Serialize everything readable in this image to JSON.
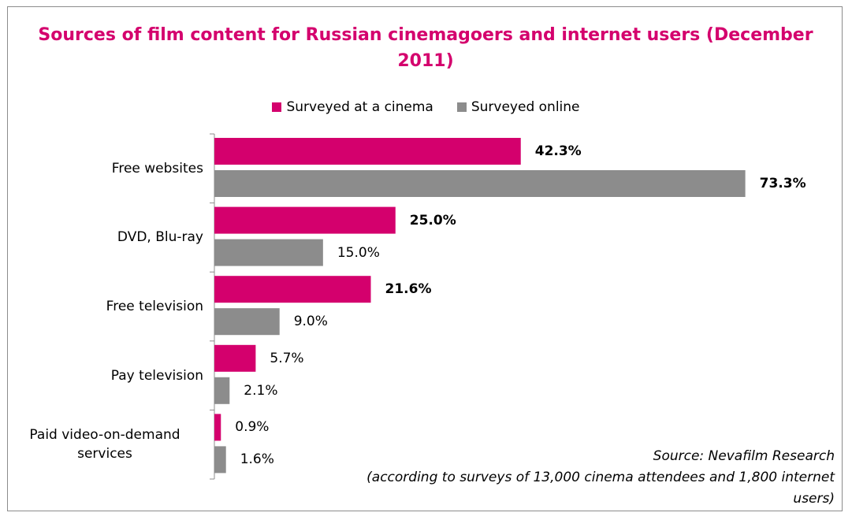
{
  "chart_data": {
    "type": "hbar",
    "title": "Sources of film content for Russian cinemagoers and internet users (December 2011)",
    "categories": [
      "Free websites",
      "DVD, Blu-ray",
      "Free television",
      "Pay television",
      "Paid video-on-demand services"
    ],
    "series": [
      {
        "name": "Surveyed at a cinema",
        "color": "#d4006d",
        "values": [
          42.3,
          25.0,
          21.6,
          5.7,
          0.9
        ],
        "value_labels": [
          "42.3%",
          "25.0%",
          "21.6%",
          "5.7%",
          "0.9%"
        ],
        "bold": [
          true,
          true,
          true,
          false,
          false
        ]
      },
      {
        "name": "Surveyed online",
        "color": "#8c8c8c",
        "values": [
          73.3,
          15.0,
          9.0,
          2.1,
          1.6
        ],
        "value_labels": [
          "73.3%",
          "15.0%",
          "9.0%",
          "2.1%",
          "1.6%"
        ],
        "bold": [
          true,
          false,
          false,
          false,
          false
        ]
      }
    ],
    "legend": "top",
    "source": "Source: Nevafilm Research",
    "note": "(according to surveys of 13,000 cinema attendees and 1,800 internet users)"
  }
}
